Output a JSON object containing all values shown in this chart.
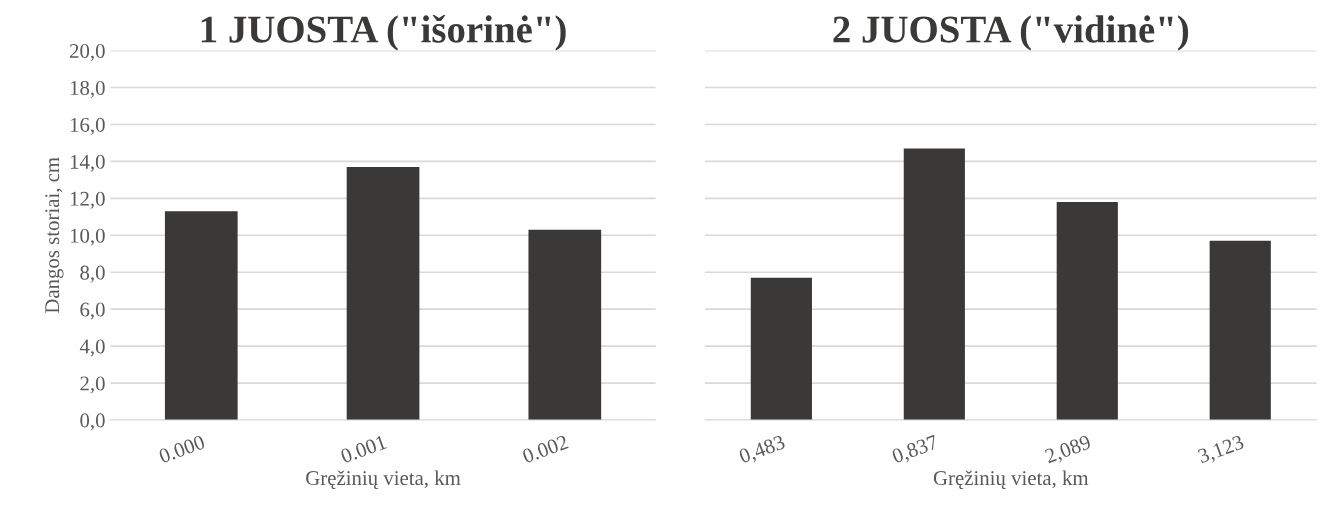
{
  "chart_data": [
    {
      "type": "bar",
      "title": "1 JUOSTA (\"išorinė\")",
      "xlabel": "Gręžinių vieta, km",
      "ylabel": "Dangos storiai, cm",
      "categories": [
        "0.000",
        "0.001",
        "0.002"
      ],
      "values": [
        11.3,
        13.7,
        10.3
      ],
      "color": "#3a3937",
      "ylim": [
        0,
        20
      ],
      "yticks": [
        {
          "value": 0,
          "label": "0,0"
        },
        {
          "value": 2,
          "label": "2,0"
        },
        {
          "value": 4,
          "label": "4,0"
        },
        {
          "value": 6,
          "label": "6,0"
        },
        {
          "value": 8,
          "label": "8,0"
        },
        {
          "value": 10,
          "label": "10,0"
        },
        {
          "value": 12,
          "label": "12,0"
        },
        {
          "value": 14,
          "label": "14,0"
        },
        {
          "value": 16,
          "label": "16,0"
        },
        {
          "value": 18,
          "label": "18,0"
        },
        {
          "value": 20,
          "label": "20,0"
        }
      ],
      "grid": "y",
      "legend": false
    },
    {
      "type": "bar",
      "title": "2 JUOSTA (\"vidinė\")",
      "xlabel": "Gręžinių vieta, km",
      "categories": [
        "0,483",
        "0,837",
        "2,089",
        "3,123"
      ],
      "values": [
        7.7,
        14.7,
        11.8,
        9.7
      ],
      "color": "#3a3937",
      "ylim": [
        0,
        20
      ],
      "yticks": [
        0,
        2,
        4,
        6,
        8,
        10,
        12,
        14,
        16,
        18,
        20
      ],
      "grid": "y",
      "legend": false,
      "tick_labels": "x"
    }
  ]
}
